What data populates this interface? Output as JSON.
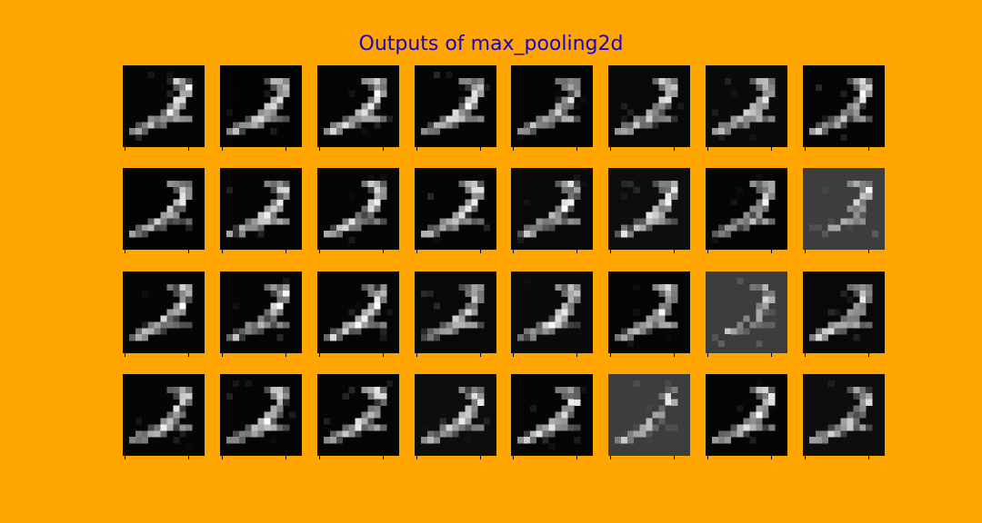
{
  "figure": {
    "title": "Outputs of max_pooling2d",
    "title_color": "#1a00cc",
    "background_color": "#ffa500",
    "panel_count": 32,
    "columns": 8,
    "rows": 4,
    "panel_background_levels": [
      0.02,
      0.01,
      0.02,
      0.02,
      0.02,
      0.03,
      0.04,
      0.02,
      0.01,
      0.02,
      0.02,
      0.02,
      0.03,
      0.05,
      0.02,
      0.24,
      0.02,
      0.02,
      0.02,
      0.03,
      0.04,
      0.02,
      0.24,
      0.03,
      0.02,
      0.02,
      0.02,
      0.05,
      0.02,
      0.24,
      0.02,
      0.05
    ]
  }
}
